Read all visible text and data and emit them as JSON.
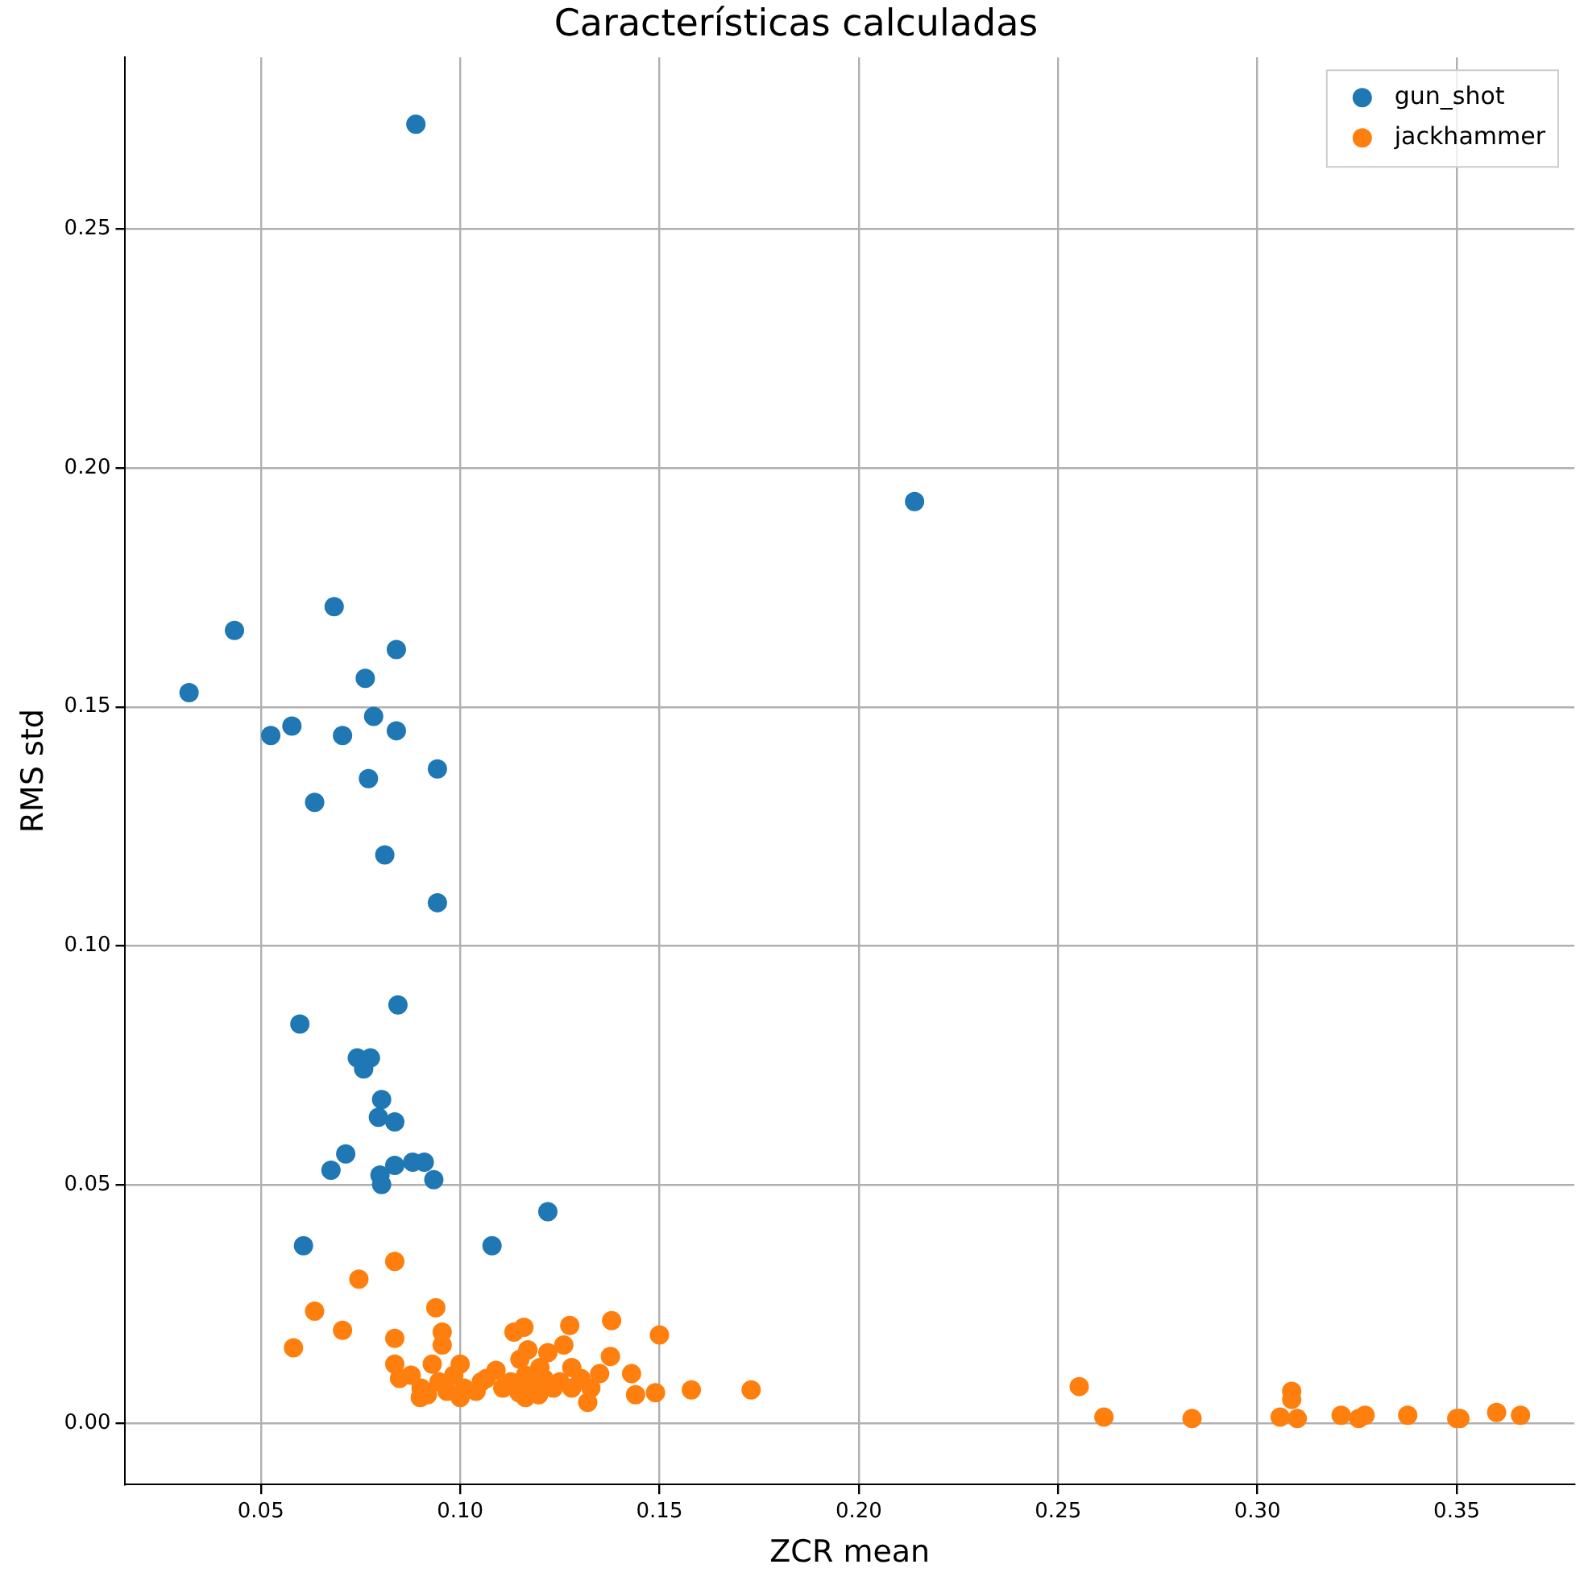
{
  "chart_data": {
    "type": "scatter",
    "title": "Características calculadas",
    "xlabel": "ZCR mean",
    "ylabel": "RMS std",
    "xlim": [
      0.016,
      0.3795
    ],
    "ylim": [
      -0.0128,
      0.286
    ],
    "xticks": [
      {
        "value": 0.05,
        "label": "0.05"
      },
      {
        "value": 0.1,
        "label": "0.10"
      },
      {
        "value": 0.15,
        "label": "0.15"
      },
      {
        "value": 0.2,
        "label": "0.20"
      },
      {
        "value": 0.25,
        "label": "0.25"
      },
      {
        "value": 0.3,
        "label": "0.30"
      },
      {
        "value": 0.35,
        "label": "0.35"
      }
    ],
    "yticks": [
      {
        "value": 0,
        "label": "0.00"
      },
      {
        "value": 0.05,
        "label": "0.05"
      },
      {
        "value": 0.1,
        "label": "0.10"
      },
      {
        "value": 0.15,
        "label": "0.15"
      },
      {
        "value": 0.2,
        "label": "0.20"
      },
      {
        "value": 0.25,
        "label": "0.25"
      }
    ],
    "grid": true,
    "legend": "top right",
    "marker": "circle",
    "series": [
      {
        "name": "gun_shot",
        "color": "#1f77b4",
        "x": [
          0.0889,
          0.214,
          0.032,
          0.0434,
          0.0684,
          0.084,
          0.0762,
          0.0525,
          0.0578,
          0.0705,
          0.0783,
          0.084,
          0.077,
          0.0943,
          0.0635,
          0.0811,
          0.0943,
          0.0844,
          0.0598,
          0.0742,
          0.0775,
          0.0758,
          0.0803,
          0.0795,
          0.0836,
          0.0713,
          0.0676,
          0.0799,
          0.0803,
          0.0836,
          0.0881,
          0.091,
          0.0934,
          0.122,
          0.0607,
          0.108
        ],
        "values": [
          0.272,
          0.193,
          0.153,
          0.166,
          0.171,
          0.162,
          0.156,
          0.144,
          0.146,
          0.144,
          0.148,
          0.145,
          0.135,
          0.137,
          0.13,
          0.119,
          0.109,
          0.0876,
          0.0836,
          0.0765,
          0.0765,
          0.0742,
          0.0678,
          0.0641,
          0.0631,
          0.0564,
          0.053,
          0.052,
          0.05,
          0.054,
          0.0547,
          0.0547,
          0.051,
          0.0443,
          0.0372,
          0.0372
        ]
      },
      {
        "name": "jackhammer",
        "color": "#ff7f0e",
        "x": [
          0.0582,
          0.0635,
          0.0705,
          0.0746,
          0.0836,
          0.0836,
          0.0939,
          0.0955,
          0.0955,
          0.1135,
          0.116,
          0.1275,
          0.138,
          0.15,
          0.117,
          0.122,
          0.126,
          0.1377,
          0.115,
          0.12,
          0.0836,
          0.093,
          0.1,
          0.128,
          0.143,
          0.135,
          0.158,
          0.173,
          0.149,
          0.144,
          0.132,
          0.0848,
          0.0877,
          0.0902,
          0.0918,
          0.0947,
          0.0967,
          0.0984,
          0.101,
          0.104,
          0.1066,
          0.109,
          0.1107,
          0.1127,
          0.1148,
          0.1164,
          0.118,
          0.1197,
          0.121,
          0.1234,
          0.125,
          0.128,
          0.1303,
          0.1328,
          0.09,
          0.1053,
          0.1,
          0.1164,
          0.2553,
          0.2615,
          0.2836,
          0.3057,
          0.3086,
          0.3086,
          0.31,
          0.321,
          0.3254,
          0.327,
          0.3377,
          0.35,
          0.3508,
          0.36,
          0.366
        ],
        "values": [
          0.0158,
          0.0235,
          0.0195,
          0.0302,
          0.0339,
          0.0178,
          0.0242,
          0.0191,
          0.0164,
          0.0191,
          0.0201,
          0.0205,
          0.0215,
          0.0185,
          0.0154,
          0.0148,
          0.0164,
          0.014,
          0.0134,
          0.0117,
          0.0124,
          0.0124,
          0.0124,
          0.0117,
          0.0104,
          0.0104,
          0.007,
          0.007,
          0.0064,
          0.006,
          0.0044,
          0.0094,
          0.0101,
          0.0074,
          0.006,
          0.0087,
          0.0067,
          0.0101,
          0.0074,
          0.0067,
          0.0094,
          0.0111,
          0.0074,
          0.0087,
          0.0064,
          0.0101,
          0.008,
          0.006,
          0.0094,
          0.0074,
          0.0087,
          0.0074,
          0.0094,
          0.0074,
          0.0054,
          0.0087,
          0.0054,
          0.0054,
          0.0077,
          0.0013,
          0.001,
          0.0013,
          0.0067,
          0.005,
          0.001,
          0.0017,
          0.001,
          0.0017,
          0.0017,
          0.001,
          0.001,
          0.0023,
          0.0017
        ]
      }
    ]
  }
}
